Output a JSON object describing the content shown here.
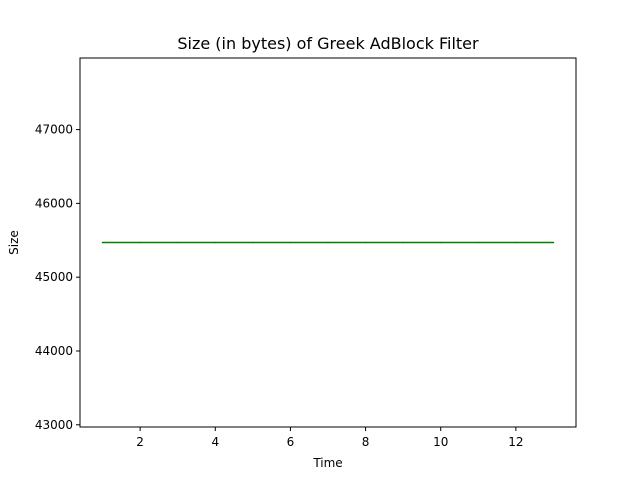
{
  "chart_data": {
    "type": "line",
    "title": "Size (in bytes) of Greek AdBlock Filter",
    "xlabel": "Time",
    "ylabel": "Size",
    "xlim": [
      0.4,
      13.6
    ],
    "ylim": [
      42970,
      47970
    ],
    "x_ticks": [
      2,
      4,
      6,
      8,
      10,
      12
    ],
    "y_ticks": [
      43000,
      44000,
      45000,
      46000,
      47000
    ],
    "grid": false,
    "series": [
      {
        "color": "#008000",
        "x": [
          1,
          2,
          3,
          4,
          5,
          6,
          7,
          8,
          9,
          10,
          11,
          12,
          13
        ],
        "y": [
          45470,
          45470,
          45470,
          45470,
          45470,
          45470,
          45470,
          45470,
          45470,
          45470,
          45470,
          45470,
          45470
        ]
      }
    ]
  }
}
